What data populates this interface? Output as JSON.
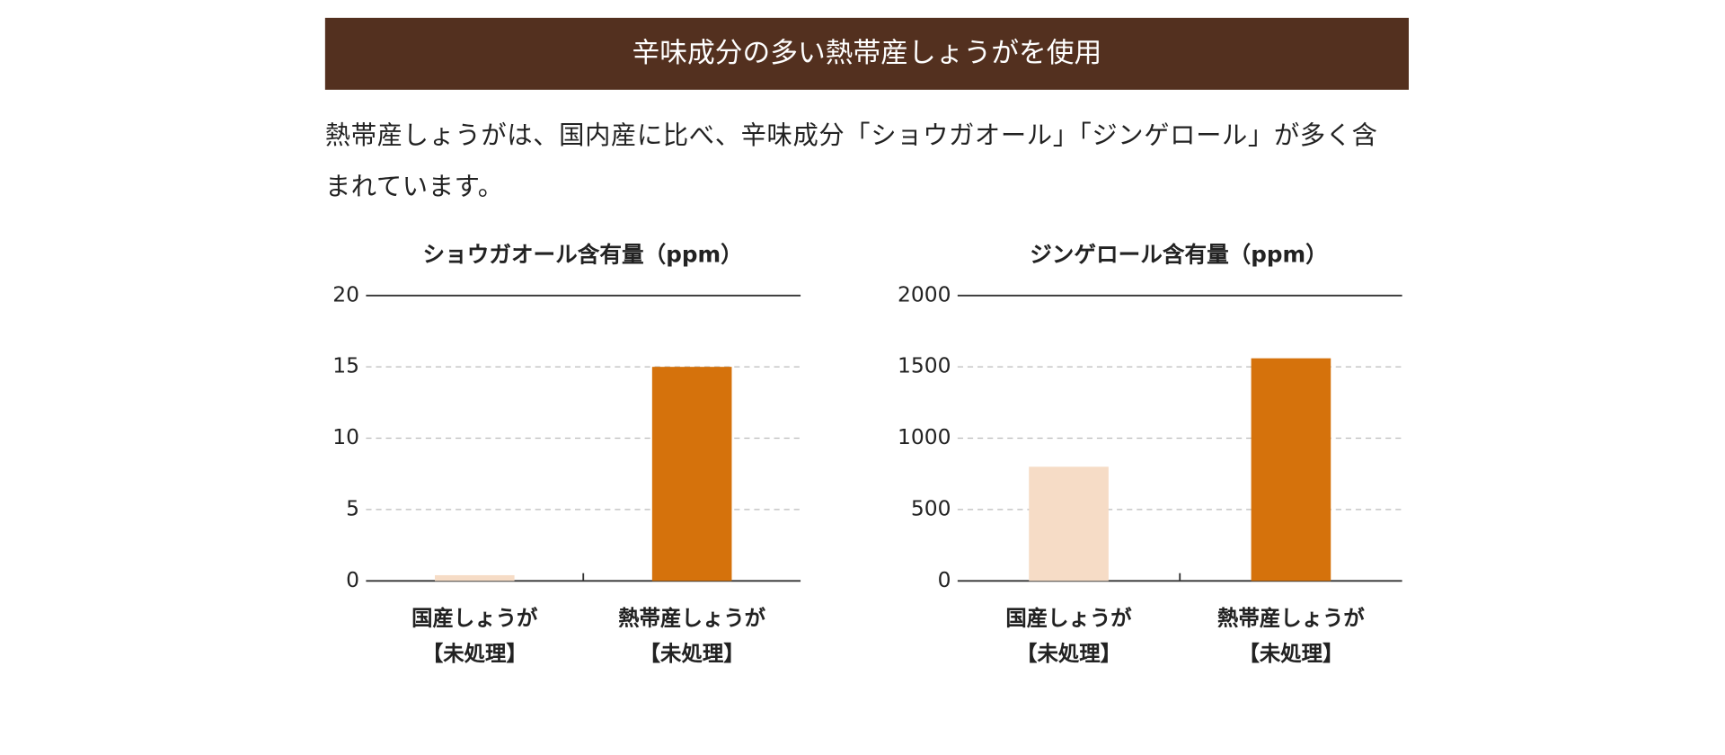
{
  "header": {
    "title": "辛味成分の多い熱帯産しょうがを使用"
  },
  "intro": {
    "text": "熱帯産しょうがは、国内産に比べ、辛味成分「ショウガオール」「ジンゲロール」が多く含まれています。"
  },
  "chart_data": [
    {
      "type": "bar",
      "title": "ショウガオール含有量（ppm）",
      "categories": [
        "国産しょうが\n【未処理】",
        "熱帯産しょうが\n【未処理】"
      ],
      "values": [
        0.4,
        15
      ],
      "colors": [
        "#f6dcc6",
        "#d5720c"
      ],
      "ylim": [
        0,
        20
      ],
      "yticks": [
        0,
        5,
        10,
        15,
        20
      ],
      "grid": true
    },
    {
      "type": "bar",
      "title": "ジンゲロール含有量（ppm）",
      "categories": [
        "国産しょうが\n【未処理】",
        "熱帯産しょうが\n【未処理】"
      ],
      "values": [
        800,
        1560
      ],
      "colors": [
        "#f6dcc6",
        "#d5720c"
      ],
      "ylim": [
        0,
        2000
      ],
      "yticks": [
        0,
        500,
        1000,
        1500,
        2000
      ],
      "grid": true
    }
  ]
}
